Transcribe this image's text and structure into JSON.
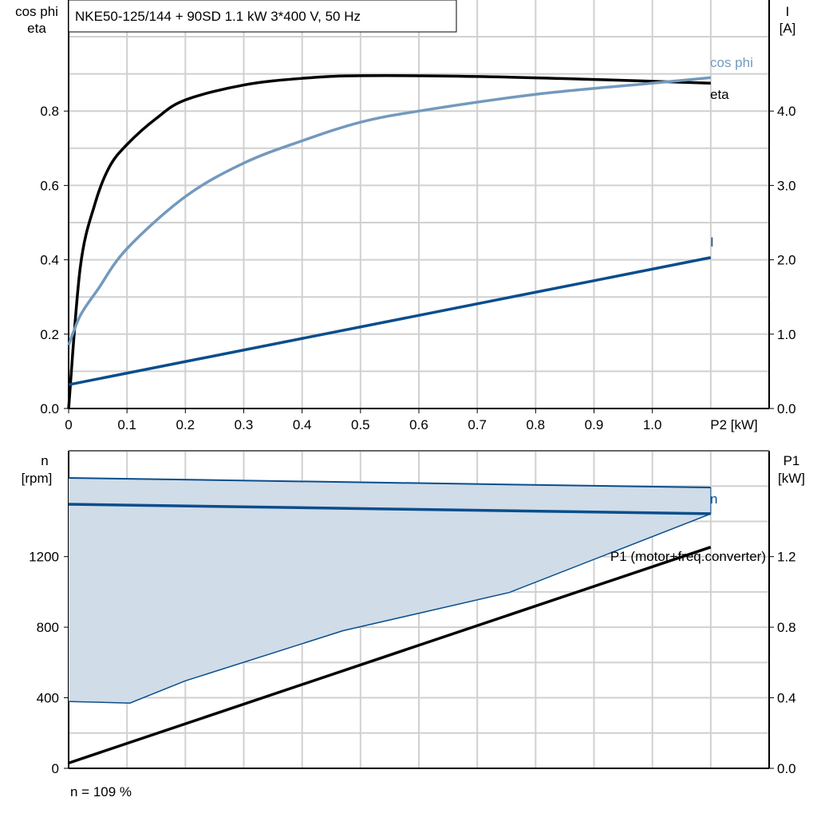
{
  "title": "NKE50-125/144 + 90SD   1.1 kW   3*400 V, 50 Hz",
  "footer": "n = 109 %",
  "colors": {
    "eta": "#000000",
    "cos_phi": "#7399bd",
    "I": "#0a4d8c",
    "n": "#0a4d8c",
    "band": "#d0dce8",
    "P1": "#000000",
    "grid": "#d0d0d0"
  },
  "chart_data": [
    {
      "type": "line",
      "grid": true,
      "xlabel": "P2 [kW]",
      "xlim": [
        0,
        1.2
      ],
      "xticks": [
        "0",
        "0.1",
        "0.2",
        "0.3",
        "0.4",
        "0.5",
        "0.6",
        "0.7",
        "0.8",
        "0.9",
        "1.0"
      ],
      "ylabel_left": [
        "cos phi",
        "eta"
      ],
      "ylim_left": [
        0,
        1.0
      ],
      "yticks_left": [
        "0.0",
        "0.2",
        "0.4",
        "0.6",
        "0.8"
      ],
      "ylabel_right": [
        "I",
        "[A]"
      ],
      "ylim_right": [
        0,
        5.0
      ],
      "yticks_right": [
        "0.0",
        "1.0",
        "2.0",
        "3.0",
        "4.0"
      ],
      "series": [
        {
          "name": "eta",
          "axis": "left",
          "x": [
            0,
            0.02,
            0.045,
            0.07,
            0.1,
            0.15,
            0.2,
            0.3,
            0.4,
            0.5,
            0.7,
            0.9,
            1.1
          ],
          "y": [
            0,
            0.38,
            0.55,
            0.65,
            0.71,
            0.78,
            0.83,
            0.87,
            0.888,
            0.895,
            0.893,
            0.885,
            0.875
          ]
        },
        {
          "name": "cos phi",
          "axis": "left",
          "x": [
            0,
            0.02,
            0.05,
            0.1,
            0.2,
            0.3,
            0.4,
            0.5,
            0.6,
            0.8,
            1.0,
            1.1
          ],
          "y": [
            0.17,
            0.25,
            0.32,
            0.43,
            0.57,
            0.66,
            0.72,
            0.77,
            0.8,
            0.845,
            0.875,
            0.89
          ]
        },
        {
          "name": "I",
          "axis": "right",
          "x": [
            0,
            1.1
          ],
          "y": [
            0.32,
            2.03
          ]
        }
      ]
    },
    {
      "type": "line",
      "grid": true,
      "xlim": [
        0,
        1.2
      ],
      "ylabel_left": [
        "n",
        "[rpm]"
      ],
      "ylim_left": [
        0,
        1800
      ],
      "yticks_left": [
        "0",
        "400",
        "800",
        "1200"
      ],
      "ylabel_right": [
        "P1",
        "[kW]"
      ],
      "ylim_right": [
        0,
        1.8
      ],
      "yticks_right": [
        "0.0",
        "0.4",
        "0.8",
        "1.2"
      ],
      "band": {
        "upper": {
          "x": [
            0,
            1.1
          ],
          "y": [
            1646,
            1592
          ]
        },
        "lower": {
          "x": [
            0,
            0.105,
            0.2,
            0.47,
            0.755,
            1.1
          ],
          "y": [
            379,
            370,
            496,
            780,
            997,
            1443
          ]
        }
      },
      "series": [
        {
          "name": "n",
          "axis": "left",
          "x": [
            0,
            1.1
          ],
          "y": [
            1497,
            1443
          ]
        },
        {
          "name": "P1 (motor+freq.converter)",
          "axis": "right",
          "x": [
            0,
            1.1
          ],
          "y": [
            0.03,
            1.254
          ]
        }
      ]
    }
  ]
}
